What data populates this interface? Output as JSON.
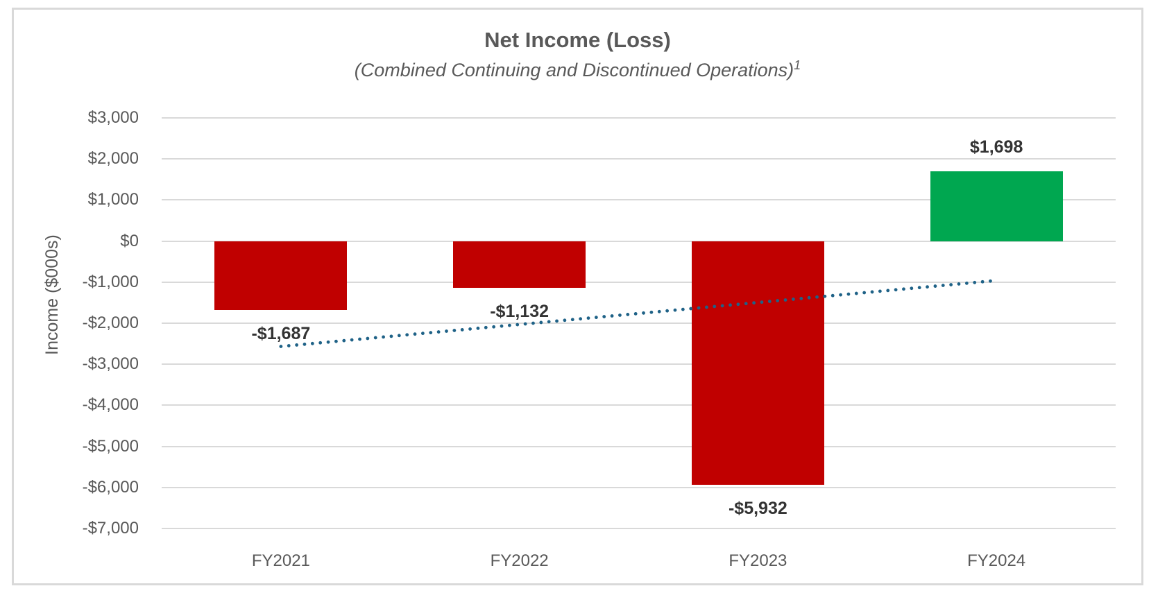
{
  "chart_data": {
    "type": "bar",
    "title": "Net Income (Loss)",
    "subtitle": "(Combined Continuing and Discontinued Operations)",
    "subtitle_superscript": "1",
    "ylabel": "Income ($000s)",
    "xlabel": "",
    "categories": [
      "FY2021",
      "FY2022",
      "FY2023",
      "FY2024"
    ],
    "values": [
      -1687,
      -1132,
      -5932,
      1698
    ],
    "value_labels": [
      "-$1,687",
      "-$1,132",
      "-$5,932",
      "$1,698"
    ],
    "bar_colors": [
      "#C00000",
      "#C00000",
      "#C00000",
      "#00A750"
    ],
    "negative_color": "#C00000",
    "positive_color": "#00A750",
    "ylim": [
      -7000,
      3000
    ],
    "y_tick_step": 1000,
    "y_tick_labels": [
      "$3,000",
      "$2,000",
      "$1,000",
      "$0",
      "-$1,000",
      "-$2,000",
      "-$3,000",
      "-$4,000",
      "-$5,000",
      "-$6,000",
      "-$7,000"
    ],
    "grid": true,
    "gridline_color": "#D9D9D9",
    "frame_border_color": "#D9D9D9",
    "legend": "none",
    "trendline": {
      "type": "linear",
      "style": "dotted",
      "color": "#1F6287",
      "start_category": "FY2021",
      "start_value": -2566,
      "end_category": "FY2024",
      "end_value": -960
    }
  }
}
